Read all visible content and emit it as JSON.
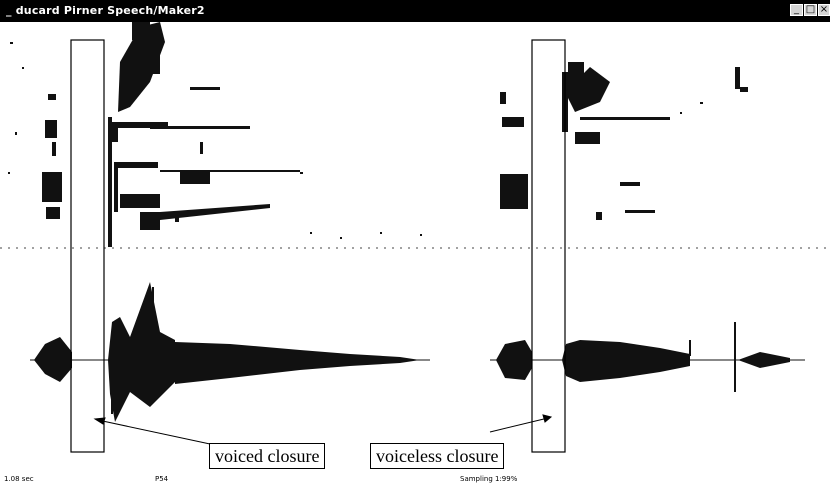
{
  "window": {
    "title": "_ ducard Pirner  Speech/Maker2",
    "buttons": [
      "_",
      "□",
      "×"
    ]
  },
  "annotations": {
    "voiced": "voiced closure",
    "voiceless": "voiceless closure"
  },
  "status": {
    "time": "1.08 sec",
    "field2": "P54",
    "field3": "Sampling 1:99%"
  }
}
